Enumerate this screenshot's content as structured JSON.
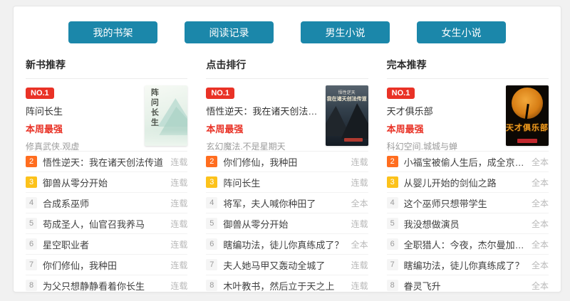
{
  "nav": {
    "buttons": [
      {
        "label": "我的书架"
      },
      {
        "label": "阅读记录"
      },
      {
        "label": "男生小说"
      },
      {
        "label": "女生小说"
      }
    ]
  },
  "colors": {
    "button_teal": "#1b87aa",
    "no1_red": "#e93226",
    "rank2_orange": "#ff6d1f",
    "rank3_yellow": "#fcc21b",
    "status_gray": "#b9b9b9"
  },
  "columns": [
    {
      "header": "新书推荐",
      "featured": {
        "rank_label": "NO.1",
        "title": "阵问长生",
        "tagline": "本周最强",
        "meta": "修真武侠.观虚",
        "cover_title": "阵问长生"
      },
      "items": [
        {
          "rank": "2",
          "title": "悟性逆天：我在诸天创法传道",
          "status": "连载"
        },
        {
          "rank": "3",
          "title": "御兽从零分开始",
          "status": "连载"
        },
        {
          "rank": "4",
          "title": "合成系巫师",
          "status": "连载"
        },
        {
          "rank": "5",
          "title": "苟成圣人，仙官召我养马",
          "status": "连载"
        },
        {
          "rank": "6",
          "title": "星空职业者",
          "status": "连载"
        },
        {
          "rank": "7",
          "title": "你们修仙，我种田",
          "status": "连载"
        },
        {
          "rank": "8",
          "title": "为父只想静静看着你长生",
          "status": "连载"
        }
      ]
    },
    {
      "header": "点击排行",
      "featured": {
        "rank_label": "NO.1",
        "title": "悟性逆天：我在诸天创法传道",
        "tagline": "本周最强",
        "meta": "玄幻魔法.不是星期天",
        "cover_line1": "悟性逆天",
        "cover_line2": "我在诸天创法传道"
      },
      "items": [
        {
          "rank": "2",
          "title": "你们修仙，我种田",
          "status": "连载"
        },
        {
          "rank": "3",
          "title": "阵问长生",
          "status": "连载"
        },
        {
          "rank": "4",
          "title": "将军，夫人喊你种田了",
          "status": "全本"
        },
        {
          "rank": "5",
          "title": "御兽从零分开始",
          "status": "连载"
        },
        {
          "rank": "6",
          "title": "瞎编功法，徒儿你真练成了？",
          "status": "全本"
        },
        {
          "rank": "7",
          "title": "夫人她马甲又轰动全城了",
          "status": "连载"
        },
        {
          "rank": "8",
          "title": "木叶教书，然后立于天之上",
          "status": "连载"
        }
      ]
    },
    {
      "header": "完本推荐",
      "featured": {
        "rank_label": "NO.1",
        "title": "天才俱乐部",
        "tagline": "本周最强",
        "meta": "科幻空间.城城与蝉",
        "cover_title": "天才俱乐部"
      },
      "items": [
        {
          "rank": "2",
          "title": "小福宝被偷人生后，成全京城团宠",
          "status": "全本"
        },
        {
          "rank": "3",
          "title": "从婴儿开始的剑仙之路",
          "status": "全本"
        },
        {
          "rank": "4",
          "title": "这个巫师只想带学生",
          "status": "全本"
        },
        {
          "rank": "5",
          "title": "我没想做演员",
          "status": "全本"
        },
        {
          "rank": "6",
          "title": "全职猎人：今夜，杰尔曼加入狩猎",
          "status": "全本"
        },
        {
          "rank": "7",
          "title": "瞎编功法，徒儿你真练成了？",
          "status": "全本"
        },
        {
          "rank": "8",
          "title": "眷灵飞升",
          "status": "全本"
        }
      ]
    }
  ]
}
